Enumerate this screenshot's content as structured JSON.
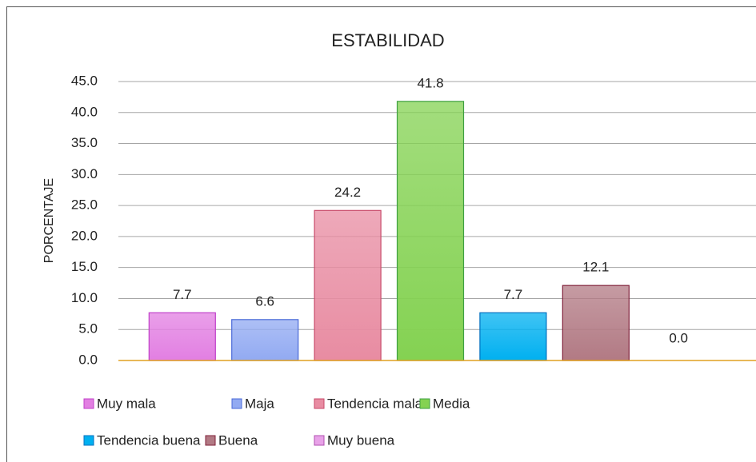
{
  "chart_data": {
    "type": "bar",
    "title": "ESTABILIDAD",
    "ylabel": "PORCENTAJE",
    "ylim": [
      0,
      45
    ],
    "yticks": [
      {
        "value": 0,
        "label": "0.0"
      },
      {
        "value": 5,
        "label": "5.0"
      },
      {
        "value": 10,
        "label": "10.0"
      },
      {
        "value": 15,
        "label": "15.0"
      },
      {
        "value": 20,
        "label": "20.0"
      },
      {
        "value": 25,
        "label": "25.0"
      },
      {
        "value": 30,
        "label": "30.0"
      },
      {
        "value": 35,
        "label": "35.0"
      },
      {
        "value": 40,
        "label": "40.0"
      },
      {
        "value": 45,
        "label": "45.0"
      }
    ],
    "grid": true,
    "legend": "bottom",
    "series": [
      {
        "name": "Muy mala",
        "color": "#e27fe2",
        "edgecolor": "#c040c8",
        "values": [
          7.7
        ]
      },
      {
        "name": "Maja",
        "color": "#92aaf2",
        "edgecolor": "#4a6ad8",
        "values": [
          6.6
        ]
      },
      {
        "name": "Tendencia mala",
        "color": "#e88ca2",
        "edgecolor": "#c84a6a",
        "values": [
          24.2
        ]
      },
      {
        "name": "Media",
        "color": "#84d252",
        "edgecolor": "#3ea040",
        "values": [
          41.8
        ]
      },
      {
        "name": "Tendencia buena",
        "color": "#00b0f0",
        "edgecolor": "#0070c0",
        "values": [
          7.7
        ]
      },
      {
        "name": "Buena",
        "color": "#b27a84",
        "edgecolor": "#80203a",
        "values": [
          12.1
        ]
      },
      {
        "name": "Muy buena",
        "color": "#e8a2e8",
        "edgecolor": "#b050b0",
        "values": [
          0
        ],
        "value_labels": [
          "0.0"
        ]
      }
    ]
  }
}
